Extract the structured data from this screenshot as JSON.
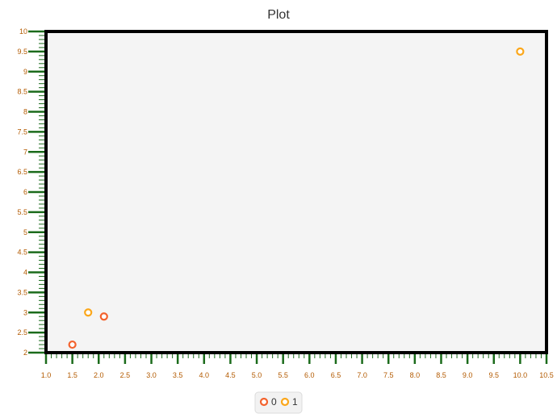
{
  "chart_data": {
    "type": "scatter",
    "title": "Plot",
    "xlabel": "",
    "ylabel": "",
    "xlim": [
      1.0,
      10.5
    ],
    "ylim": [
      2,
      10
    ],
    "x_ticks": [
      "1.0",
      "1.5",
      "2.0",
      "2.5",
      "3.0",
      "3.5",
      "4.0",
      "4.5",
      "5.0",
      "5.5",
      "6.0",
      "6.5",
      "7.0",
      "7.5",
      "8.0",
      "8.5",
      "9.0",
      "9.5",
      "10.0",
      "10.5"
    ],
    "y_ticks": [
      "2",
      "2.5",
      "3",
      "3.5",
      "4",
      "4.5",
      "5",
      "5.5",
      "6",
      "6.5",
      "7",
      "7.5",
      "8",
      "8.5",
      "9",
      "9.5",
      "10"
    ],
    "grid": false,
    "legend_position": "bottom-center",
    "series": [
      {
        "name": "0",
        "color": "#f3622d",
        "points": [
          {
            "x": 1.5,
            "y": 2.2
          },
          {
            "x": 2.1,
            "y": 2.9
          }
        ]
      },
      {
        "name": "1",
        "color": "#fba71b",
        "points": [
          {
            "x": 1.8,
            "y": 3.0
          },
          {
            "x": 10.0,
            "y": 9.5
          }
        ]
      }
    ],
    "colors": {
      "plot_background": "#f4f4f4",
      "plot_border": "#000000",
      "axis_tick": "#1b6b1b",
      "tick_label": "#b35a00",
      "title": "#333333"
    }
  }
}
